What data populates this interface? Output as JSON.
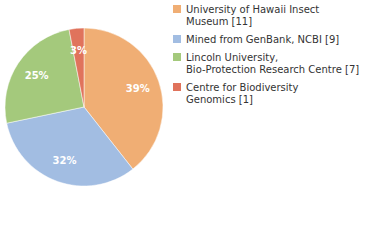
{
  "chart_data": {
    "type": "pie",
    "categories": [
      [
        "University of Hawaii Insect",
        "Museum [11]"
      ],
      [
        "Mined from GenBank, NCBI [9]"
      ],
      [
        "Lincoln University,",
        "Bio-Protection Research Centre [7]"
      ],
      [
        "Centre for Biodiversity",
        "Genomics [1]"
      ]
    ],
    "values": [
      39,
      32,
      25,
      3
    ],
    "value_labels": [
      "39%",
      "32%",
      "25%",
      "3%"
    ],
    "colors": [
      "#f0ae74",
      "#a2bde2",
      "#a4c97c",
      "#e0735c"
    ],
    "data_labels": true,
    "legend": "top-right"
  }
}
